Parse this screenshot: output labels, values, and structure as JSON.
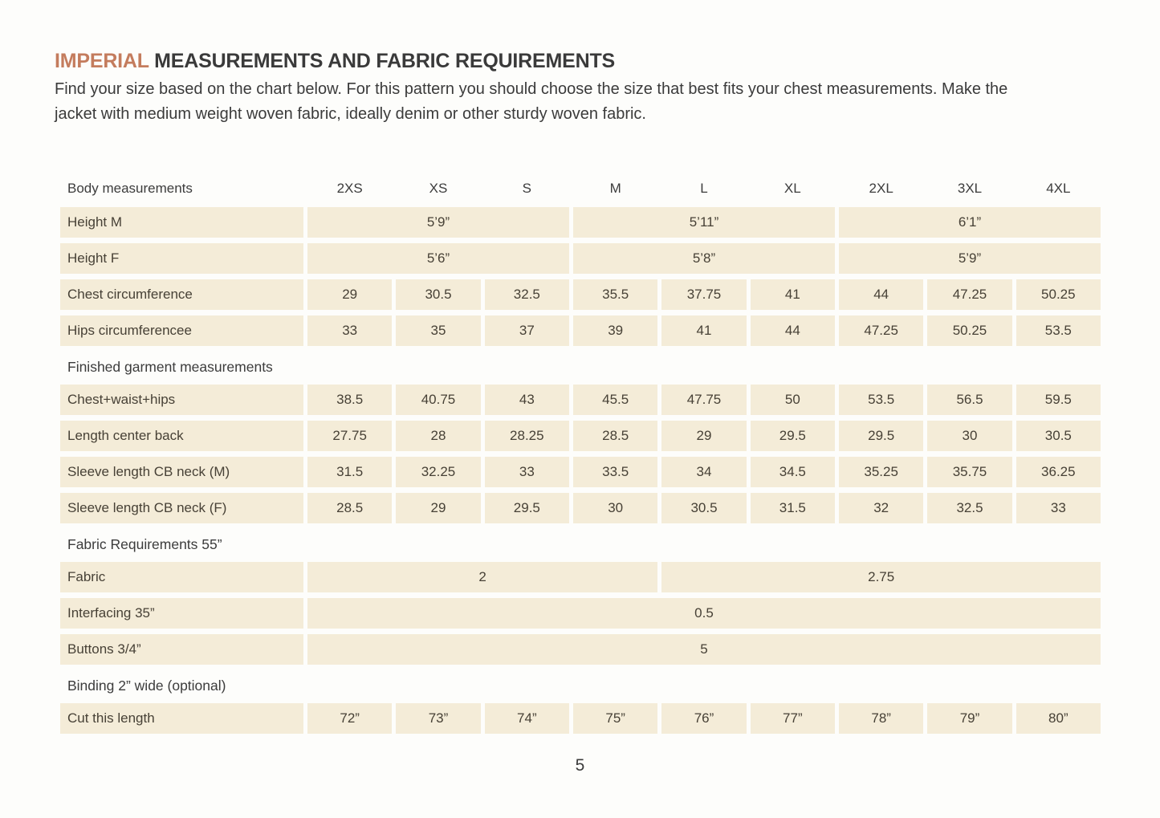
{
  "page": {
    "title_highlight": "IMPERIAL",
    "title_rest": " MEASUREMENTS AND FABRIC REQUIREMENTS",
    "intro": "Find your size based on the chart below. For this pattern you should choose the size that best fits your chest measurements. Make the jacket with medium weight woven fabric, ideally denim or other sturdy woven fabric.",
    "page_number": "5"
  },
  "colors": {
    "accent_orange": "#c47c5d",
    "cell_beige": "#f4ecd8",
    "text_dark": "#3b3b3b",
    "background": "#fdfdfb"
  },
  "table": {
    "corner_label": "Body measurements",
    "size_headers": [
      "2XS",
      "XS",
      "S",
      "M",
      "L",
      "XL",
      "2XL",
      "3XL",
      "4XL"
    ],
    "rows": [
      {
        "type": "header"
      },
      {
        "type": "data",
        "label": "Height M",
        "cells": [
          {
            "span": 3,
            "value": "5’9”"
          },
          {
            "span": 3,
            "value": "5’11”"
          },
          {
            "span": 3,
            "value": "6’1”"
          }
        ]
      },
      {
        "type": "data",
        "label": "Height F",
        "cells": [
          {
            "span": 3,
            "value": "5’6”"
          },
          {
            "span": 3,
            "value": "5’8”"
          },
          {
            "span": 3,
            "value": "5’9”"
          }
        ]
      },
      {
        "type": "data",
        "label": "Chest circumference",
        "cells": [
          "29",
          "30.5",
          "32.5",
          "35.5",
          "37.75",
          "41",
          "44",
          "47.25",
          "50.25"
        ]
      },
      {
        "type": "data",
        "label": "Hips circumferencee",
        "cells": [
          "33",
          "35",
          "37",
          "39",
          "41",
          "44",
          "47.25",
          "50.25",
          "53.5"
        ]
      },
      {
        "type": "section",
        "label": "Finished garment measurements"
      },
      {
        "type": "data",
        "label": "Chest+waist+hips",
        "cells": [
          "38.5",
          "40.75",
          "43",
          "45.5",
          "47.75",
          "50",
          "53.5",
          "56.5",
          "59.5"
        ]
      },
      {
        "type": "data",
        "label": "Length center back",
        "cells": [
          "27.75",
          "28",
          "28.25",
          "28.5",
          "29",
          "29.5",
          "29.5",
          "30",
          "30.5"
        ]
      },
      {
        "type": "data",
        "label": "Sleeve length CB neck (M)",
        "cells": [
          "31.5",
          "32.25",
          "33",
          "33.5",
          "34",
          "34.5",
          "35.25",
          "35.75",
          "36.25"
        ]
      },
      {
        "type": "data",
        "label": "Sleeve length CB neck (F)",
        "cells": [
          "28.5",
          "29",
          "29.5",
          "30",
          "30.5",
          "31.5",
          "32",
          "32.5",
          "33"
        ]
      },
      {
        "type": "section",
        "label": "Fabric Requirements 55”"
      },
      {
        "type": "data",
        "label": "Fabric",
        "cells": [
          {
            "span": 4,
            "value": "2"
          },
          {
            "span": 5,
            "value": "2.75"
          }
        ]
      },
      {
        "type": "data",
        "label": "Interfacing 35”",
        "cells": [
          {
            "span": 9,
            "value": "0.5"
          }
        ]
      },
      {
        "type": "data",
        "label": "Buttons 3/4”",
        "cells": [
          {
            "span": 9,
            "value": "5"
          }
        ]
      },
      {
        "type": "section",
        "label": "Binding 2” wide (optional)"
      },
      {
        "type": "data",
        "label": "Cut this length",
        "cells": [
          "72”",
          "73”",
          "74”",
          "75”",
          "76”",
          "77”",
          "78”",
          "79”",
          "80”"
        ]
      }
    ]
  }
}
